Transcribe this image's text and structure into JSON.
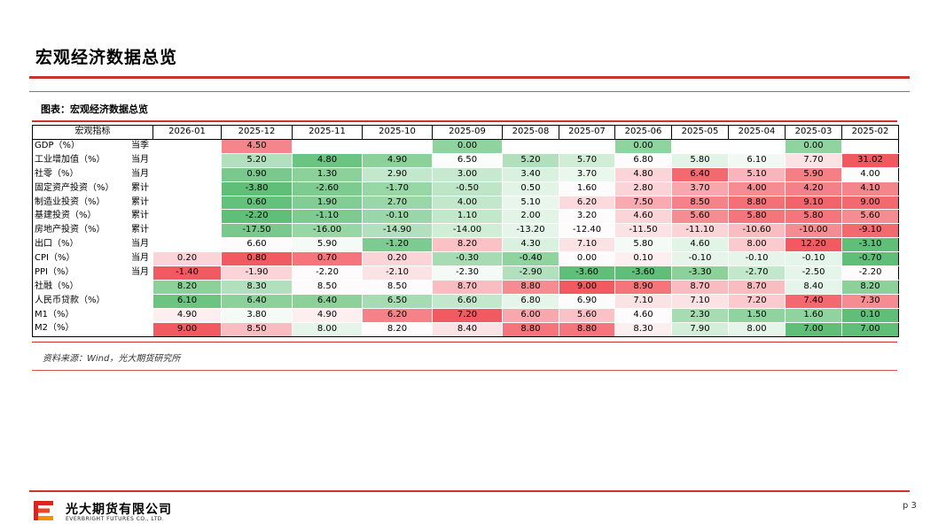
{
  "page_title": "宏观经济数据总览",
  "figure_title": "图表：宏观经济数据总览",
  "table": {
    "header_label": "宏观指标",
    "columns": [
      "2026-01",
      "2025-12",
      "2025-11",
      "2025-10",
      "2025-09",
      "2025-08",
      "2025-07",
      "2025-06",
      "2025-05",
      "2025-04",
      "2025-03",
      "2025-02"
    ],
    "rows": [
      {
        "name": "GDP（%）",
        "type": "当季",
        "cells": [
          "",
          "4.50",
          "",
          "",
          "0.00",
          "",
          "",
          "0.00",
          "",
          "",
          "0.00",
          ""
        ],
        "colors": [
          "#ffffff",
          "#f4858a",
          "#ffffff",
          "#ffffff",
          "#8fd39e",
          "#ffffff",
          "#ffffff",
          "#8fd39e",
          "#ffffff",
          "#ffffff",
          "#8fd39e",
          "#ffffff"
        ]
      },
      {
        "name": "工业增加值（%）",
        "type": "当月",
        "cells": [
          "",
          "5.20",
          "4.80",
          "4.90",
          "6.50",
          "5.20",
          "5.70",
          "6.80",
          "5.80",
          "6.10",
          "7.70",
          "31.02"
        ],
        "colors": [
          "#ffffff",
          "#b3e0bc",
          "#6cc482",
          "#8bd199",
          "#fbfdfb",
          "#b3e0bc",
          "#cfeed5",
          "#fdfbfb",
          "#e2f4e6",
          "#f2f9f3",
          "#fbe2e4",
          "#ef5a60"
        ]
      },
      {
        "name": "社零（%）",
        "type": "当月",
        "cells": [
          "",
          "0.90",
          "1.30",
          "2.90",
          "3.00",
          "3.40",
          "3.70",
          "4.80",
          "6.40",
          "5.10",
          "5.90",
          "4.00"
        ],
        "colors": [
          "#ffffff",
          "#79c98e",
          "#8bd199",
          "#c2e7ca",
          "#c7e9cf",
          "#d9f1de",
          "#eaf7ed",
          "#fbd4d7",
          "#f26a70",
          "#f8b6ba",
          "#f47f85",
          "#fbfdfb"
        ]
      },
      {
        "name": "固定资产投资（%）",
        "type": "累计",
        "cells": [
          "",
          "-3.80",
          "-2.60",
          "-1.70",
          "-0.50",
          "0.50",
          "1.60",
          "2.80",
          "3.70",
          "4.00",
          "4.20",
          "4.10"
        ],
        "colors": [
          "#ffffff",
          "#5fbf78",
          "#7ecb91",
          "#97d6a5",
          "#bde5c6",
          "#e2f4e6",
          "#fdfbfb",
          "#fbd4d7",
          "#f8a7ac",
          "#f58c91",
          "#f4808a",
          "#f4858a"
        ]
      },
      {
        "name": "制造业投资（%）",
        "type": "累计",
        "cells": [
          "",
          "0.60",
          "1.90",
          "2.70",
          "4.00",
          "5.10",
          "6.20",
          "7.50",
          "8.50",
          "8.80",
          "9.10",
          "9.00"
        ],
        "colors": [
          "#ffffff",
          "#63c17b",
          "#82cd95",
          "#9ad7a8",
          "#c2e7ca",
          "#e9f6ec",
          "#fbd9dc",
          "#f8aab0",
          "#f58288",
          "#f46f76",
          "#f2646b",
          "#f26a70"
        ]
      },
      {
        "name": "基建投资（%）",
        "type": "累计",
        "cells": [
          "",
          "-2.20",
          "-1.10",
          "-0.10",
          "1.10",
          "2.00",
          "3.20",
          "4.60",
          "5.60",
          "5.80",
          "5.80",
          "5.60"
        ],
        "colors": [
          "#ffffff",
          "#5fbf78",
          "#7ecb91",
          "#9ad7a8",
          "#c2e7ca",
          "#e2f4e6",
          "#fdfbfb",
          "#fbd4d7",
          "#f58c91",
          "#f4767c",
          "#f4767c",
          "#f58c91"
        ]
      },
      {
        "name": "房地产投资（%）",
        "type": "累计",
        "cells": [
          "",
          "-17.50",
          "-16.00",
          "-14.90",
          "-14.00",
          "-13.20",
          "-12.40",
          "-11.50",
          "-11.10",
          "-10.60",
          "-10.00",
          "-9.10"
        ],
        "colors": [
          "#ffffff",
          "#79c98e",
          "#97d6a5",
          "#b3e0bc",
          "#cfeed5",
          "#e6f5e9",
          "#fdfbfb",
          "#fbe2e4",
          "#fbd4d7",
          "#f9bcc0",
          "#f58c91",
          "#f26a70"
        ]
      },
      {
        "name": "出口（%）",
        "type": "当月",
        "cells": [
          "",
          "6.60",
          "5.90",
          "-1.20",
          "8.20",
          "4.30",
          "7.10",
          "5.80",
          "4.60",
          "8.00",
          "12.20",
          "-3.10"
        ],
        "colors": [
          "#ffffff",
          "#fdfbfb",
          "#f4faf5",
          "#7ecb91",
          "#fbc2c6",
          "#d9f1de",
          "#fbe2e4",
          "#f4faf5",
          "#e2f4e6",
          "#fbcace",
          "#f15a61",
          "#5fbf78"
        ]
      },
      {
        "name": "CPI（%）",
        "type": "当月",
        "cells": [
          "0.20",
          "0.80",
          "0.70",
          "0.20",
          "-0.30",
          "-0.40",
          "0.00",
          "0.10",
          "-0.10",
          "-0.10",
          "-0.10",
          "-0.70"
        ],
        "colors": [
          "#fbd4d7",
          "#f15a61",
          "#f4767c",
          "#fbd4d7",
          "#a7dcb3",
          "#8fd39e",
          "#fdfbfb",
          "#fdeef0",
          "#e6f5e9",
          "#e6f5e9",
          "#e6f5e9",
          "#5fbf78"
        ]
      },
      {
        "name": "PPI（%）",
        "type": "当月",
        "cells": [
          "-1.40",
          "-1.90",
          "-2.20",
          "-2.10",
          "-2.30",
          "-2.90",
          "-3.60",
          "-3.60",
          "-3.30",
          "-2.70",
          "-2.50",
          "-2.20"
        ],
        "colors": [
          "#f15a61",
          "#fbd4d7",
          "#fdfbfb",
          "#fbe2e4",
          "#f4faf5",
          "#b3e0bc",
          "#5fbf78",
          "#5fbf78",
          "#8bd199",
          "#c2e7ca",
          "#e6f5e9",
          "#fdfbfb"
        ]
      },
      {
        "name": "社融（%）",
        "type": "",
        "cells": [
          "8.20",
          "8.30",
          "8.50",
          "8.50",
          "8.70",
          "8.80",
          "9.00",
          "8.90",
          "8.70",
          "8.70",
          "8.40",
          "8.20"
        ],
        "colors": [
          "#8bd199",
          "#b3e0bc",
          "#fdfbfb",
          "#fdfbfb",
          "#f9bcc0",
          "#f58c91",
          "#f15a61",
          "#f4767c",
          "#f9bcc0",
          "#f9bcc0",
          "#e6f5e9",
          "#8bd199"
        ]
      },
      {
        "name": "人民币贷款（%）",
        "type": "",
        "cells": [
          "6.10",
          "6.40",
          "6.40",
          "6.50",
          "6.60",
          "6.80",
          "6.90",
          "7.10",
          "7.10",
          "7.20",
          "7.40",
          "7.30"
        ],
        "colors": [
          "#6cc482",
          "#8bd199",
          "#8bd199",
          "#a7dcb3",
          "#c2e7ca",
          "#e6f5e9",
          "#fdfbfb",
          "#fbe2e4",
          "#fbe2e4",
          "#fbcace",
          "#f26a70",
          "#f58c91"
        ]
      },
      {
        "name": "M1（%）",
        "type": "",
        "cells": [
          "4.90",
          "3.80",
          "4.90",
          "6.20",
          "7.20",
          "6.00",
          "5.60",
          "4.60",
          "2.30",
          "1.50",
          "1.60",
          "0.10"
        ],
        "colors": [
          "#fdeef0",
          "#f4faf5",
          "#fdeef0",
          "#f58288",
          "#f15a61",
          "#f8a7ac",
          "#fbc2c6",
          "#fdfbfb",
          "#a7dcb3",
          "#8fd39e",
          "#8fd39e",
          "#5fbf78"
        ]
      },
      {
        "name": "M2（%）",
        "type": "",
        "cells": [
          "9.00",
          "8.50",
          "8.00",
          "8.20",
          "8.40",
          "8.80",
          "8.80",
          "8.30",
          "7.90",
          "8.00",
          "7.00",
          "7.00"
        ],
        "colors": [
          "#f15a61",
          "#f9bcc0",
          "#e6f5e9",
          "#fdfbfb",
          "#fbe2e4",
          "#f4767c",
          "#f4767c",
          "#fdeef0",
          "#d3eed9",
          "#e6f5e9",
          "#5fbf78",
          "#5fbf78"
        ]
      }
    ]
  },
  "source": "资料来源：Wind，光大期货研究所",
  "footer": {
    "company_cn": "光大期货有限公司",
    "company_en": "EVERBRIGHT FUTURES CO., LTD.",
    "page_number": "p 3",
    "logo_colors": [
      "#d7261e",
      "#f29100"
    ]
  }
}
